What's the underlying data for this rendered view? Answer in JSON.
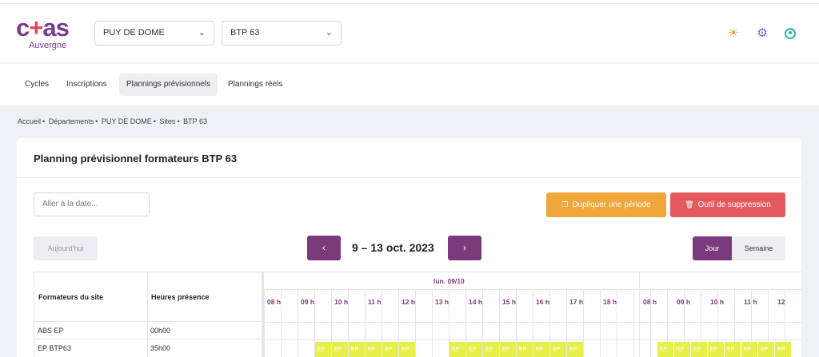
{
  "header": {
    "logo_word": {
      "c": "c",
      "plus": "+",
      "as": "as"
    },
    "logo_region": "Auvergne",
    "select_department": "PUY DE DOME",
    "select_site": "BTP 63"
  },
  "nav": {
    "tabs": [
      {
        "label": "Cycles"
      },
      {
        "label": "Inscriptions"
      },
      {
        "label": "Plannings prévisionnels",
        "active": true
      },
      {
        "label": "Plannings réels"
      }
    ]
  },
  "breadcrumb": {
    "items": [
      "Accueil",
      "Départements",
      "PUY DE DOME",
      "Sites",
      "BTP 63"
    ],
    "separator": "•"
  },
  "card": {
    "title": "Planning prévisionnel formateurs BTP 63",
    "date_placeholder": "Aller à la date...",
    "duplicate_label": "Dupliquer une période",
    "delete_label": "Outil de suppression",
    "today_label": "Aujourd'hui",
    "range_label": "9 – 13 oct. 2023",
    "view_day": "Jour",
    "view_week": "Semaine"
  },
  "table": {
    "col1_header": "Formateurs du site",
    "col2_header": "Heures présence",
    "rows": [
      {
        "name": "ABS EP",
        "hours": "00h00"
      },
      {
        "name": "EP BTP63",
        "hours": "35h00"
      }
    ]
  },
  "timeline": {
    "day_label": "lun. 09/10",
    "hours_day1": [
      "08 h",
      "09 h",
      "10 h",
      "11 h",
      "12 h",
      "13 h",
      "14 h",
      "15 h",
      "16 h",
      "17 h",
      "18 h"
    ],
    "hours_day2": [
      "08 h",
      "09 h",
      "10 h",
      "11 h",
      "12"
    ],
    "slot_label": "EP",
    "colors": {
      "slot": "#e7ef4b",
      "accent": "#7a3a7c"
    }
  },
  "icons": {
    "theme": "sun-icon",
    "settings": "gear-icon",
    "account": "user-icon"
  }
}
